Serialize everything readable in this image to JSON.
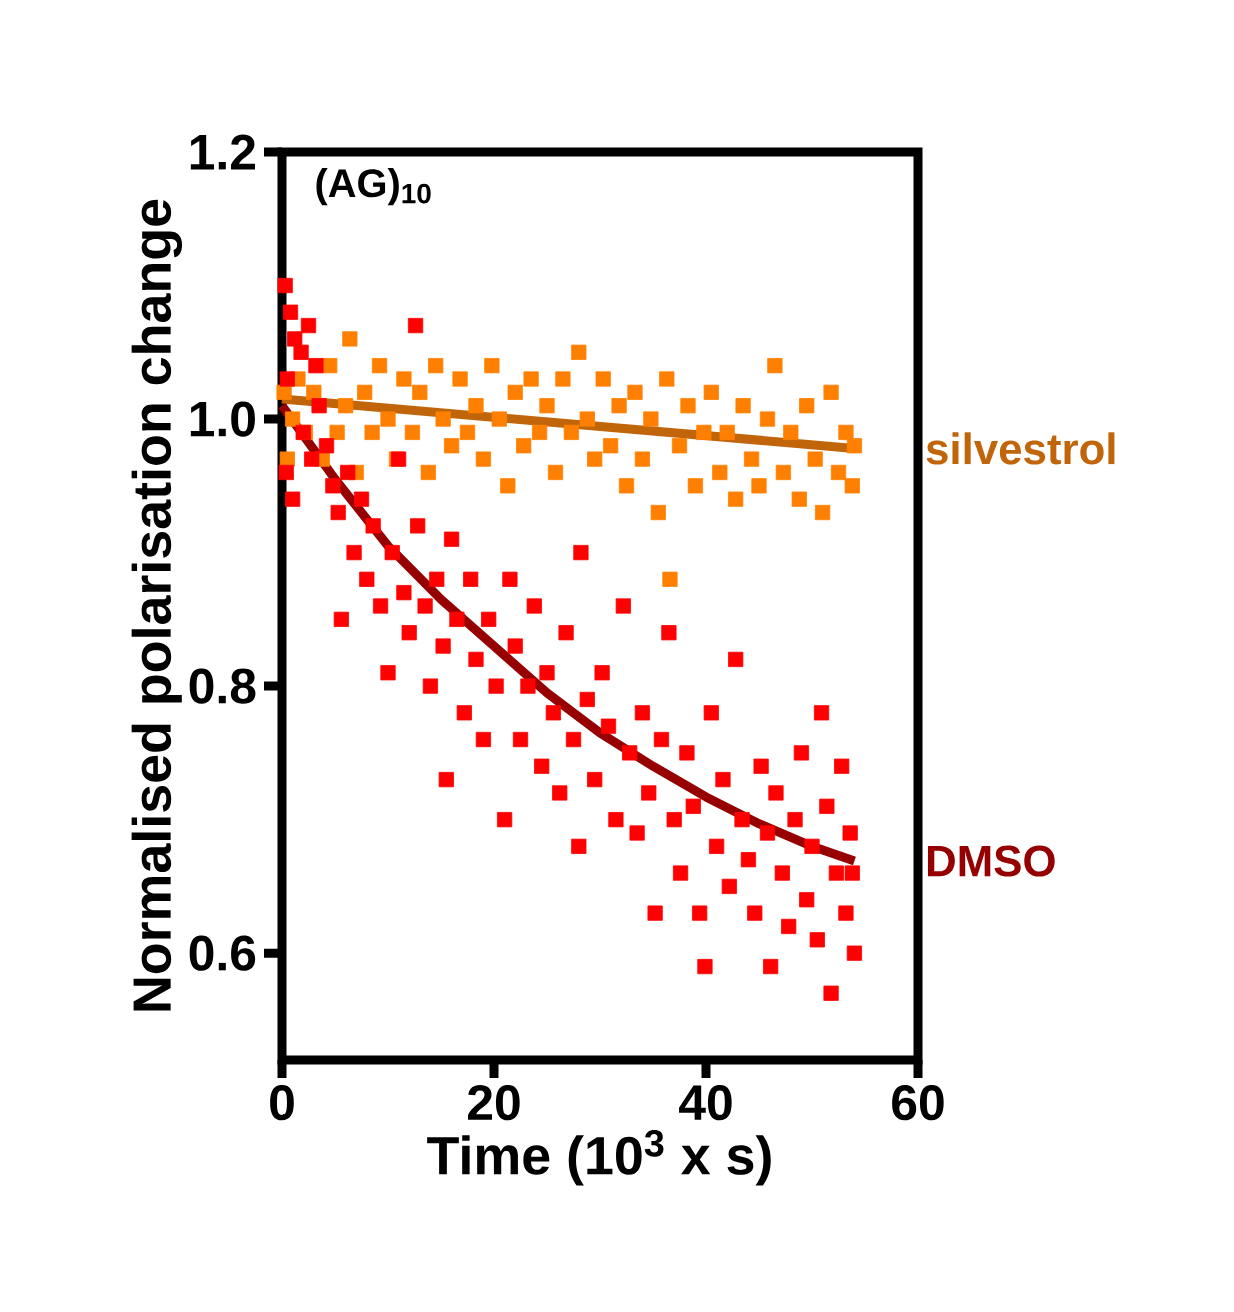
{
  "chart_data": {
    "type": "scatter",
    "xlabel": "Time (10$^{3}$ x s)",
    "ylabel": "Normalised polarisation change",
    "annotations": [
      "(AG)$_{10}$"
    ],
    "xlim": [
      0,
      60
    ],
    "ylim": [
      0.52,
      1.2
    ],
    "xticks": [
      0,
      20,
      40,
      60
    ],
    "yticks": [
      0.6,
      0.8,
      {
        "value": 1.0,
        "label": "1.0"
      },
      1.2
    ],
    "series": [
      {
        "color": "#ff8000",
        "marker": "square",
        "x": [
          0.2,
          0.5,
          1.0,
          1.5,
          2.2,
          3.0,
          3.8,
          4.5,
          5.2,
          6.0,
          6.4,
          7.0,
          7.8,
          8.5,
          9.2,
          10.0,
          10.8,
          11.5,
          12.3,
          13.0,
          13.8,
          14.5,
          15.2,
          16.0,
          16.8,
          17.5,
          18.3,
          19.0,
          19.8,
          20.5,
          21.3,
          22.0,
          22.8,
          23.5,
          24.3,
          25.0,
          25.8,
          26.5,
          27.3,
          28.0,
          28.8,
          29.5,
          30.3,
          31.0,
          31.8,
          32.5,
          33.3,
          34.0,
          34.8,
          35.5,
          36.3,
          36.6,
          37.5,
          38.3,
          39.0,
          39.8,
          40.5,
          41.3,
          42.0,
          42.8,
          43.5,
          44.3,
          45.0,
          45.8,
          46.5,
          47.3,
          48.0,
          48.8,
          49.5,
          50.3,
          51.0,
          51.8,
          52.5,
          53.2,
          53.8,
          54.0
        ],
        "values": [
          1.02,
          0.97,
          1.0,
          1.03,
          0.99,
          1.02,
          0.97,
          1.04,
          0.99,
          1.01,
          1.06,
          0.96,
          1.02,
          0.99,
          1.04,
          1.0,
          0.97,
          1.03,
          0.99,
          1.02,
          0.96,
          1.04,
          1.0,
          0.98,
          1.03,
          0.99,
          1.01,
          0.97,
          1.04,
          1.0,
          0.95,
          1.02,
          0.98,
          1.03,
          0.99,
          1.01,
          0.96,
          1.03,
          0.99,
          1.05,
          1.0,
          0.97,
          1.03,
          0.98,
          1.01,
          0.95,
          1.02,
          0.97,
          1.0,
          0.93,
          1.03,
          0.88,
          0.98,
          1.01,
          0.95,
          0.99,
          1.02,
          0.96,
          0.99,
          0.94,
          1.01,
          0.97,
          0.95,
          1.0,
          1.04,
          0.96,
          0.99,
          0.94,
          1.01,
          0.97,
          0.93,
          1.02,
          0.96,
          0.99,
          0.95,
          0.98
        ]
      },
      {
        "color": "#ff0000",
        "marker": "square",
        "x": [
          0.3,
          0.8,
          1.2,
          0.5,
          1.8,
          2.5,
          3.2,
          0.4,
          1.0,
          2.0,
          2.8,
          3.5,
          4.2,
          4.8,
          5.6,
          5.3,
          6.2,
          6.8,
          7.5,
          8.0,
          8.6,
          9.3,
          10.0,
          10.4,
          11.0,
          11.5,
          12.0,
          12.6,
          12.8,
          13.5,
          14.0,
          14.6,
          15.2,
          15.5,
          16.0,
          16.5,
          17.2,
          17.8,
          18.3,
          19.0,
          19.5,
          20.2,
          21.0,
          21.5,
          22.0,
          22.5,
          23.2,
          23.8,
          24.5,
          25.0,
          25.6,
          26.2,
          26.8,
          27.5,
          28.0,
          28.2,
          28.8,
          29.5,
          30.2,
          30.8,
          31.5,
          32.2,
          32.8,
          33.5,
          34.0,
          34.6,
          35.2,
          35.8,
          36.5,
          37.0,
          37.6,
          38.2,
          38.8,
          39.4,
          39.9,
          40.5,
          41.0,
          41.6,
          42.2,
          42.8,
          43.4,
          44.0,
          44.6,
          45.2,
          45.8,
          46.1,
          46.6,
          47.2,
          47.8,
          48.4,
          49.0,
          49.5,
          50.0,
          50.5,
          50.9,
          51.4,
          51.8,
          52.3,
          52.8,
          53.2,
          53.6,
          54.0,
          53.8
        ],
        "values": [
          1.1,
          1.08,
          1.06,
          1.03,
          1.05,
          1.07,
          1.04,
          0.96,
          0.94,
          0.99,
          0.97,
          1.01,
          0.98,
          0.95,
          0.85,
          0.93,
          0.96,
          0.9,
          0.94,
          0.88,
          0.92,
          0.86,
          0.81,
          0.9,
          0.97,
          0.87,
          0.84,
          1.07,
          0.92,
          0.86,
          0.8,
          0.88,
          0.83,
          0.73,
          0.91,
          0.85,
          0.78,
          0.88,
          0.82,
          0.76,
          0.85,
          0.8,
          0.7,
          0.88,
          0.83,
          0.76,
          0.8,
          0.86,
          0.74,
          0.81,
          0.78,
          0.72,
          0.84,
          0.76,
          0.68,
          0.9,
          0.79,
          0.73,
          0.81,
          0.77,
          0.7,
          0.86,
          0.75,
          0.69,
          0.78,
          0.72,
          0.63,
          0.76,
          0.84,
          0.7,
          0.66,
          0.75,
          0.71,
          0.63,
          0.59,
          0.78,
          0.68,
          0.73,
          0.65,
          0.82,
          0.7,
          0.67,
          0.63,
          0.74,
          0.69,
          0.59,
          0.72,
          0.66,
          0.62,
          0.7,
          0.75,
          0.64,
          0.68,
          0.61,
          0.78,
          0.71,
          0.57,
          0.66,
          0.74,
          0.63,
          0.69,
          0.6,
          0.66
        ]
      },
      {
        "type": "line",
        "marker": "none",
        "name": "silvestrol",
        "color": "#c0650a",
        "x": [
          0,
          54
        ],
        "values": [
          1.015,
          0.978
        ]
      },
      {
        "type": "line",
        "marker": "none",
        "name": "DMSO",
        "color": "#960000",
        "x": [
          0,
          5,
          10,
          15,
          20,
          25,
          30,
          35,
          40,
          45,
          50,
          54
        ],
        "values": [
          1.01,
          0.955,
          0.905,
          0.865,
          0.83,
          0.795,
          0.765,
          0.74,
          0.717,
          0.697,
          0.68,
          0.669
        ]
      }
    ]
  }
}
